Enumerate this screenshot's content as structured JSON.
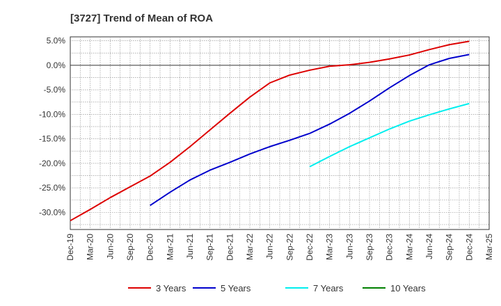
{
  "chart_data": {
    "type": "line",
    "title": "[3727]  Trend of Mean of ROA",
    "xlabel": "",
    "ylabel": "",
    "x_ticks": [
      "Dec-19",
      "Mar-20",
      "Jun-20",
      "Sep-20",
      "Dec-20",
      "Mar-21",
      "Jun-21",
      "Sep-21",
      "Dec-21",
      "Mar-22",
      "Jun-22",
      "Sep-22",
      "Dec-22",
      "Mar-23",
      "Jun-23",
      "Sep-23",
      "Dec-23",
      "Mar-24",
      "Jun-24",
      "Sep-24",
      "Dec-24",
      "Mar-25"
    ],
    "y_ticks": [
      "5.0%",
      "0.0%",
      "-5.0%",
      "-10.0%",
      "-15.0%",
      "-20.0%",
      "-25.0%",
      "-30.0%"
    ],
    "y_tick_values": [
      5,
      0,
      -5,
      -10,
      -15,
      -20,
      -25,
      -30
    ],
    "ylim": [
      -33.5,
      5.8
    ],
    "grid": true,
    "legend_position": "bottom",
    "series": [
      {
        "name": "3 Years",
        "color": "#dd0000",
        "x": [
          "Dec-19",
          "Mar-20",
          "Jun-20",
          "Sep-20",
          "Dec-20",
          "Mar-21",
          "Jun-21",
          "Sep-21",
          "Dec-21",
          "Mar-22",
          "Jun-22",
          "Sep-22",
          "Dec-22",
          "Mar-23",
          "Jun-23",
          "Sep-23",
          "Dec-23",
          "Mar-24",
          "Jun-24",
          "Sep-24",
          "Dec-24"
        ],
        "values": [
          -31.7,
          -29.4,
          -27.0,
          -24.8,
          -22.6,
          -19.8,
          -16.6,
          -13.2,
          -9.8,
          -6.5,
          -3.6,
          -2.0,
          -1.0,
          -0.2,
          0.1,
          0.6,
          1.3,
          2.1,
          3.2,
          4.2,
          4.9
        ]
      },
      {
        "name": "5 Years",
        "color": "#0000cc",
        "x": [
          "Dec-20",
          "Mar-21",
          "Jun-21",
          "Sep-21",
          "Dec-21",
          "Mar-22",
          "Jun-22",
          "Sep-22",
          "Dec-22",
          "Mar-23",
          "Jun-23",
          "Sep-23",
          "Dec-23",
          "Mar-24",
          "Jun-24",
          "Sep-24",
          "Dec-24"
        ],
        "values": [
          -28.6,
          -25.9,
          -23.4,
          -21.4,
          -19.8,
          -18.1,
          -16.6,
          -15.3,
          -13.9,
          -12.0,
          -9.8,
          -7.3,
          -4.6,
          -2.1,
          0.1,
          1.4,
          2.2
        ]
      },
      {
        "name": "7 Years",
        "color": "#00eeee",
        "x": [
          "Dec-22",
          "Mar-23",
          "Jun-23",
          "Sep-23",
          "Dec-23",
          "Mar-24",
          "Jun-24",
          "Sep-24",
          "Dec-24"
        ],
        "values": [
          -20.7,
          -18.6,
          -16.6,
          -14.8,
          -13.0,
          -11.4,
          -10.1,
          -8.9,
          -7.8
        ]
      },
      {
        "name": "10 Years",
        "color": "#008000",
        "x": [],
        "values": []
      }
    ]
  }
}
